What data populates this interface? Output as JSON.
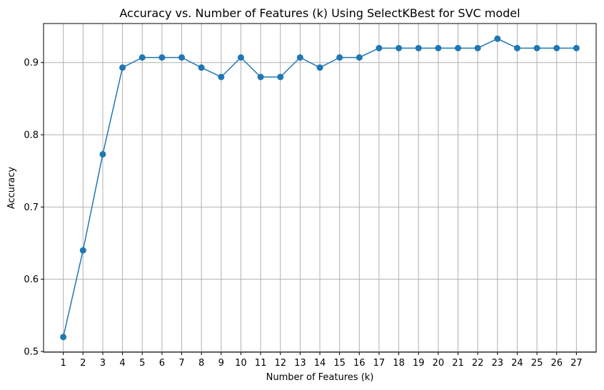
{
  "chart_data": {
    "type": "line",
    "title": "Accuracy vs. Number of Features (k) Using SelectKBest for SVC model",
    "xlabel": "Number of Features (k)",
    "ylabel": "Accuracy",
    "x": [
      1,
      2,
      3,
      4,
      5,
      6,
      7,
      8,
      9,
      10,
      11,
      12,
      13,
      14,
      15,
      16,
      17,
      18,
      19,
      20,
      21,
      22,
      23,
      24,
      25,
      26,
      27
    ],
    "series": [
      {
        "values": [
          0.52,
          0.64,
          0.773,
          0.893,
          0.907,
          0.907,
          0.907,
          0.893,
          0.88,
          0.907,
          0.88,
          0.88,
          0.907,
          0.893,
          0.907,
          0.907,
          0.92,
          0.92,
          0.92,
          0.92,
          0.92,
          0.92,
          0.933,
          0.92,
          0.92,
          0.92,
          0.92
        ],
        "color": "#1f77b4",
        "marker": "circle"
      }
    ],
    "yticks": [
      0.5,
      0.6,
      0.7,
      0.8,
      0.9
    ],
    "ylim": [
      0.499,
      0.954
    ],
    "xlim": [
      0.0,
      28.0
    ],
    "grid": true
  }
}
